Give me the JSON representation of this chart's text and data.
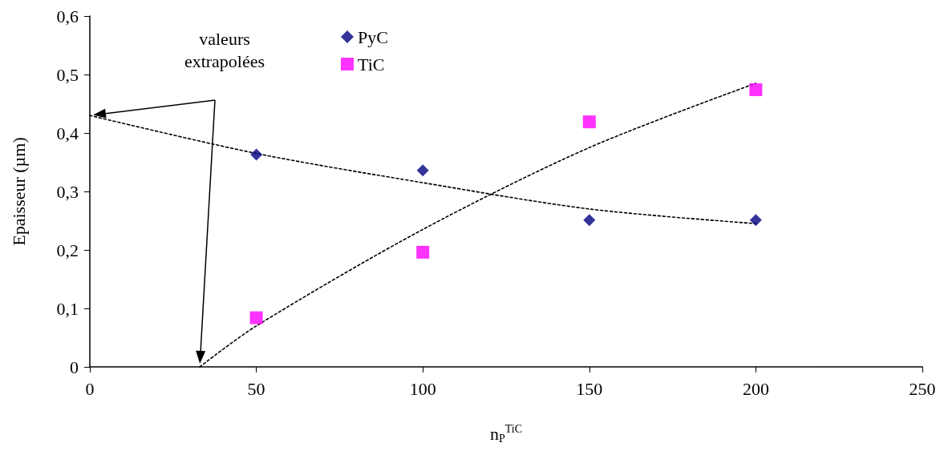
{
  "chart_data": {
    "type": "scatter",
    "xlabel": "n$_{P}$$^{TiC}$",
    "ylabel": "Epaisseur (µm)",
    "annotations": [
      "valeurs extrapolées"
    ],
    "series": [
      {
        "name": "PyC",
        "color": "#000080",
        "marker": "diamond",
        "x": [
          50,
          100,
          150,
          200
        ],
        "values": [
          0.363,
          0.336,
          0.251,
          0.251
        ]
      },
      {
        "name": "TiC",
        "color": "#ff00ff",
        "marker": "square",
        "x": [
          50,
          100,
          150,
          200
        ],
        "values": [
          0.084,
          0.196,
          0.419,
          0.474
        ]
      },
      {
        "type": "line",
        "color": "#000000",
        "marker": "none",
        "line_style": "dotted",
        "x": [
          0,
          50,
          100,
          150,
          200
        ],
        "values": [
          0.43,
          0.365,
          0.315,
          0.27,
          0.245
        ]
      },
      {
        "type": "line",
        "color": "#000000",
        "marker": "none",
        "line_style": "dotted",
        "x": [
          33,
          50,
          100,
          150,
          200
        ],
        "values": [
          0,
          0.07,
          0.235,
          0.375,
          0.485
        ]
      }
    ],
    "xlim": [
      0,
      250
    ],
    "xticks": [
      0,
      50,
      100,
      150,
      200,
      250
    ],
    "ylim": [
      0,
      0.6
    ],
    "yticks": [
      {
        "value": 0,
        "label": "0"
      },
      {
        "value": 0.1,
        "label": "0,1"
      },
      {
        "value": 0.2,
        "label": "0,2"
      },
      {
        "value": 0.3,
        "label": "0,3"
      },
      {
        "value": 0.4,
        "label": "0,4"
      },
      {
        "value": 0.5,
        "label": "0,5"
      },
      {
        "value": 0.6,
        "label": "0,6"
      }
    ],
    "grid": false,
    "legend": "top"
  }
}
